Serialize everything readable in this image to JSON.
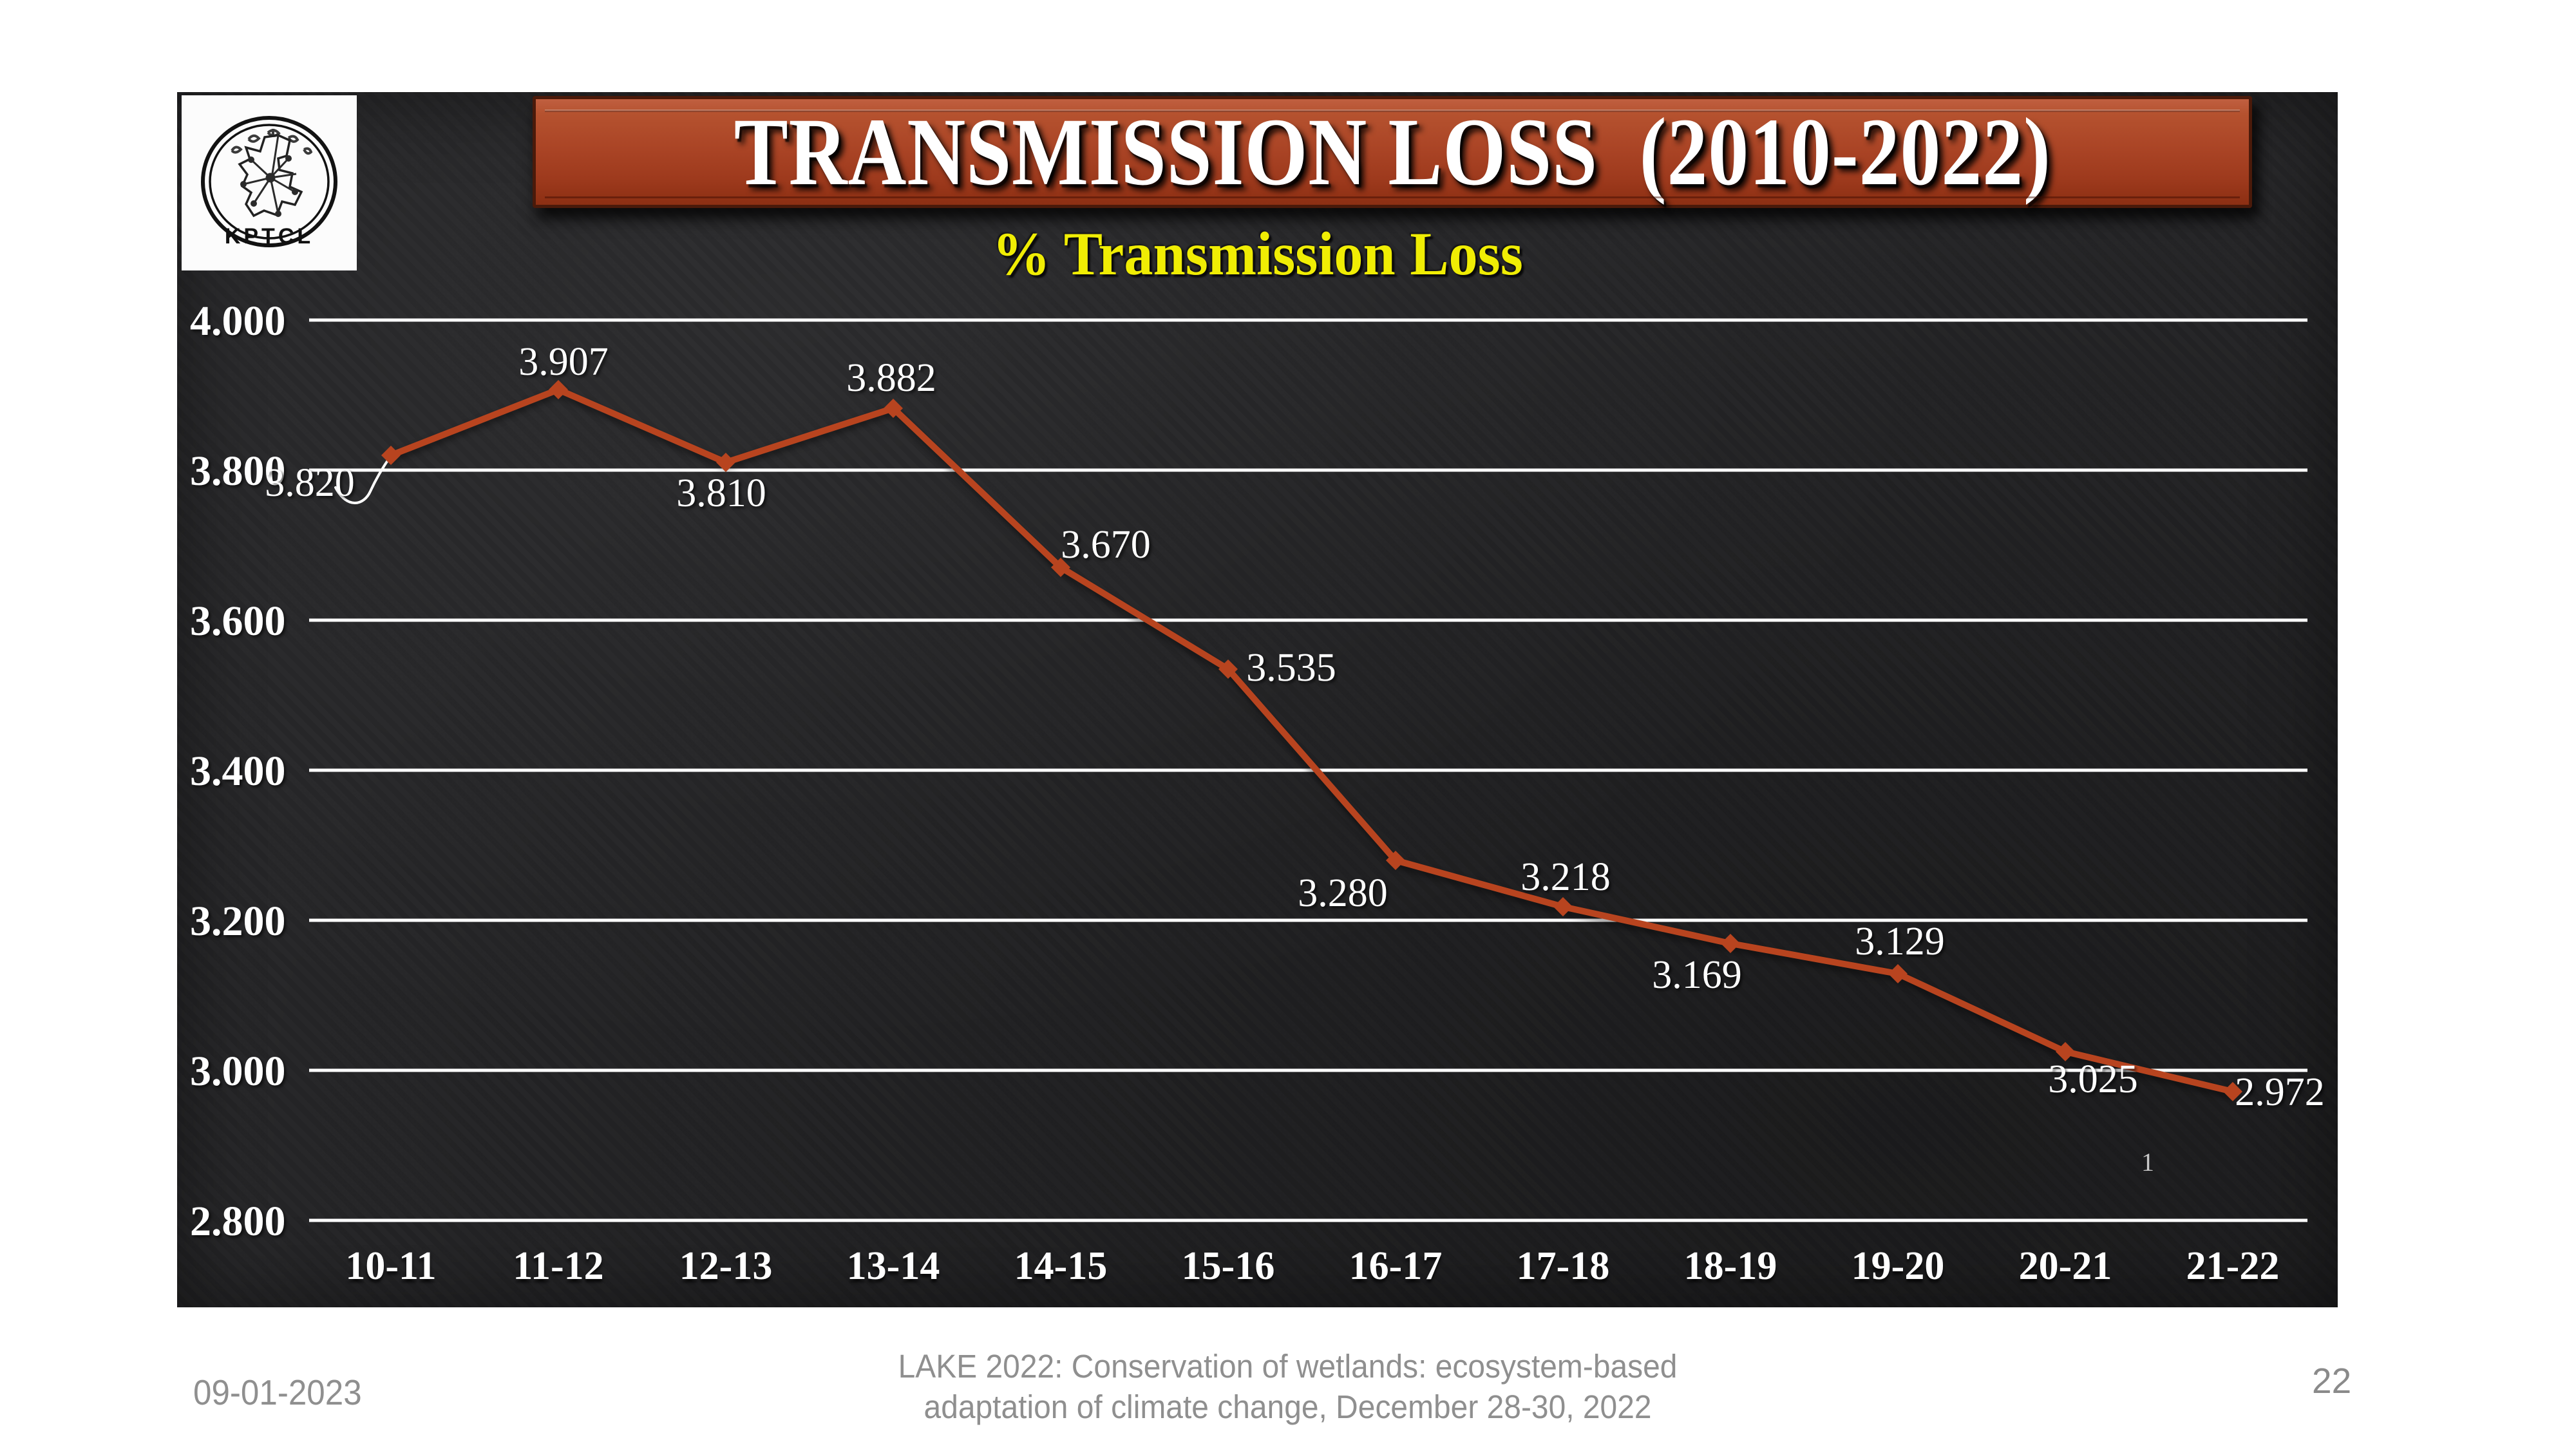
{
  "slide": {
    "title": "TRANSMISSION LOSS  (2010-2022)",
    "subtitle": "% Transmission Loss",
    "stray_label": "1",
    "logo": {
      "text_bottom": "KPTCL"
    }
  },
  "footer": {
    "date": "09-01-2023",
    "caption_line1": "LAKE 2022: Conservation of wetlands: ecosystem-based",
    "caption_line2": "adaptation of climate change, December 28-30, 2022",
    "page_number": "22"
  },
  "colors": {
    "series_line": "#b8441f",
    "gridline": "#ffffff",
    "slide_background": "#252527",
    "banner_red": "#a83f20",
    "subtitle_yellow": "#f0ed04",
    "label_white": "#ffffff",
    "footer_gray": "#8f8f8f"
  },
  "chart_data": {
    "type": "line",
    "title": "% Transmission Loss",
    "categories": [
      "10-11",
      "11-12",
      "12-13",
      "13-14",
      "14-15",
      "15-16",
      "16-17",
      "17-18",
      "18-19",
      "19-20",
      "20-21",
      "21-22"
    ],
    "values": [
      3.82,
      3.907,
      3.81,
      3.882,
      3.67,
      3.535,
      3.28,
      3.218,
      3.169,
      3.129,
      3.025,
      2.972
    ],
    "value_labels": [
      "3.820",
      "3.907",
      "3.810",
      "3.882",
      "3.670",
      "3.535",
      "3.280",
      "3.218",
      "3.169",
      "3.129",
      "3.025",
      "2.972"
    ],
    "y_ticks": [
      "4.000",
      "3.800",
      "3.600",
      "3.400",
      "3.200",
      "3.000",
      "2.800"
    ],
    "ylim": [
      2.8,
      4.0
    ],
    "xlabel": "",
    "ylabel": "",
    "grid": true,
    "legend": "none",
    "marker": "diamond",
    "series_name": "% Transmission Loss"
  }
}
